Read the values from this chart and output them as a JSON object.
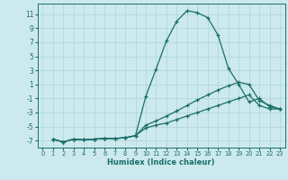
{
  "xlabel": "Humidex (Indice chaleur)",
  "bg_color": "#cce9ed",
  "grid_color": "#aad4d8",
  "line_color": "#1a6e6a",
  "xlim": [
    -0.5,
    23.5
  ],
  "ylim": [
    -8,
    12.5
  ],
  "yticks": [
    -7,
    -5,
    -3,
    -1,
    1,
    3,
    5,
    7,
    9,
    11
  ],
  "xticks": [
    0,
    1,
    2,
    3,
    4,
    5,
    6,
    7,
    8,
    9,
    10,
    11,
    12,
    13,
    14,
    15,
    16,
    17,
    18,
    19,
    20,
    21,
    22,
    23
  ],
  "series": [
    {
      "x": [
        1,
        2,
        3,
        4,
        5,
        6,
        7,
        8,
        9,
        10,
        11,
        12,
        13,
        14,
        15,
        16,
        17,
        18,
        19,
        20,
        21,
        22,
        23
      ],
      "y": [
        -6.8,
        -7.2,
        -6.8,
        -6.9,
        -6.8,
        -6.7,
        -6.7,
        -6.6,
        -6.3,
        -0.7,
        3.2,
        7.2,
        10.0,
        11.5,
        11.2,
        10.5,
        8.0,
        3.3,
        1.0,
        -1.5,
        -1.0,
        -2.2,
        -2.5
      ]
    },
    {
      "x": [
        1,
        2,
        3,
        4,
        5,
        6,
        7,
        8,
        9,
        10,
        11,
        12,
        13,
        14,
        15,
        16,
        17,
        18,
        19,
        20,
        21,
        22,
        23
      ],
      "y": [
        -6.8,
        -7.2,
        -6.8,
        -6.9,
        -6.8,
        -6.7,
        -6.7,
        -6.6,
        -6.3,
        -4.8,
        -4.2,
        -3.5,
        -2.8,
        -2.0,
        -1.2,
        -0.5,
        0.2,
        0.8,
        1.3,
        1.0,
        -1.3,
        -2.0,
        -2.5
      ]
    },
    {
      "x": [
        1,
        2,
        3,
        4,
        5,
        6,
        7,
        8,
        9,
        10,
        11,
        12,
        13,
        14,
        15,
        16,
        17,
        18,
        19,
        20,
        21,
        22,
        23
      ],
      "y": [
        -6.8,
        -7.2,
        -6.8,
        -6.9,
        -6.8,
        -6.7,
        -6.7,
        -6.6,
        -6.3,
        -5.2,
        -4.8,
        -4.5,
        -4.0,
        -3.5,
        -3.0,
        -2.5,
        -2.0,
        -1.5,
        -1.0,
        -0.5,
        -2.0,
        -2.5,
        -2.5
      ]
    }
  ]
}
